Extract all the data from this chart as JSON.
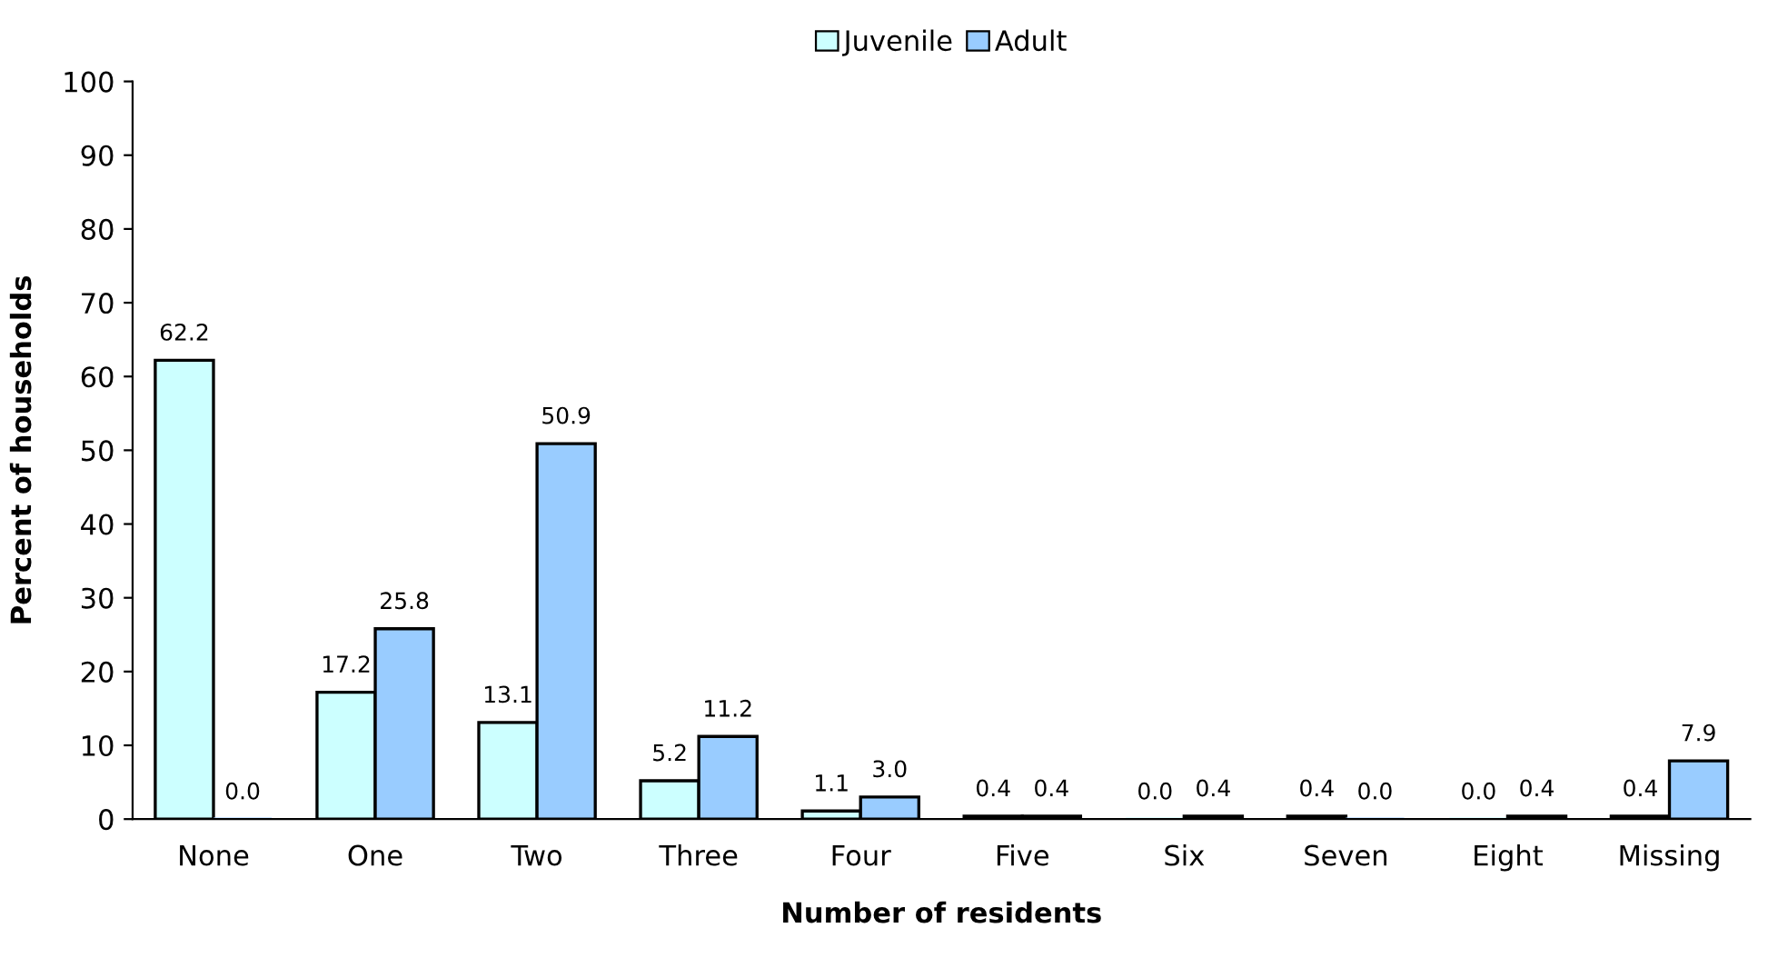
{
  "chart_data": {
    "type": "bar",
    "xlabel": "Number of residents",
    "ylabel": "Percent of households",
    "categories": [
      "None",
      "One",
      "Two",
      "Three",
      "Four",
      "Five",
      "Six",
      "Seven",
      "Eight",
      "Missing"
    ],
    "series": [
      {
        "name": "Juvenile",
        "color": "#ccffff",
        "values": [
          62.2,
          17.2,
          13.1,
          5.2,
          1.1,
          0.4,
          0.0,
          0.4,
          0.0,
          0.4
        ],
        "value_labels": [
          "62.2",
          "17.2",
          "13.1",
          "5.2",
          "1.1",
          "0.4",
          "0.0",
          "0.4",
          "0.0",
          "0.4"
        ]
      },
      {
        "name": "Adult",
        "color": "#99ccff",
        "values": [
          0.0,
          25.8,
          50.9,
          11.2,
          3.0,
          0.4,
          0.4,
          0.0,
          0.4,
          7.9
        ],
        "value_labels": [
          "0.0",
          "25.8",
          "50.9",
          "11.2",
          "3.0",
          "0.4",
          "0.4",
          "0.0",
          "0.4",
          "7.9"
        ]
      }
    ],
    "ylim": [
      0,
      100
    ],
    "yticks": [
      0,
      10,
      20,
      30,
      40,
      50,
      60,
      70,
      80,
      90,
      100
    ],
    "grid": false,
    "legend": "top"
  }
}
